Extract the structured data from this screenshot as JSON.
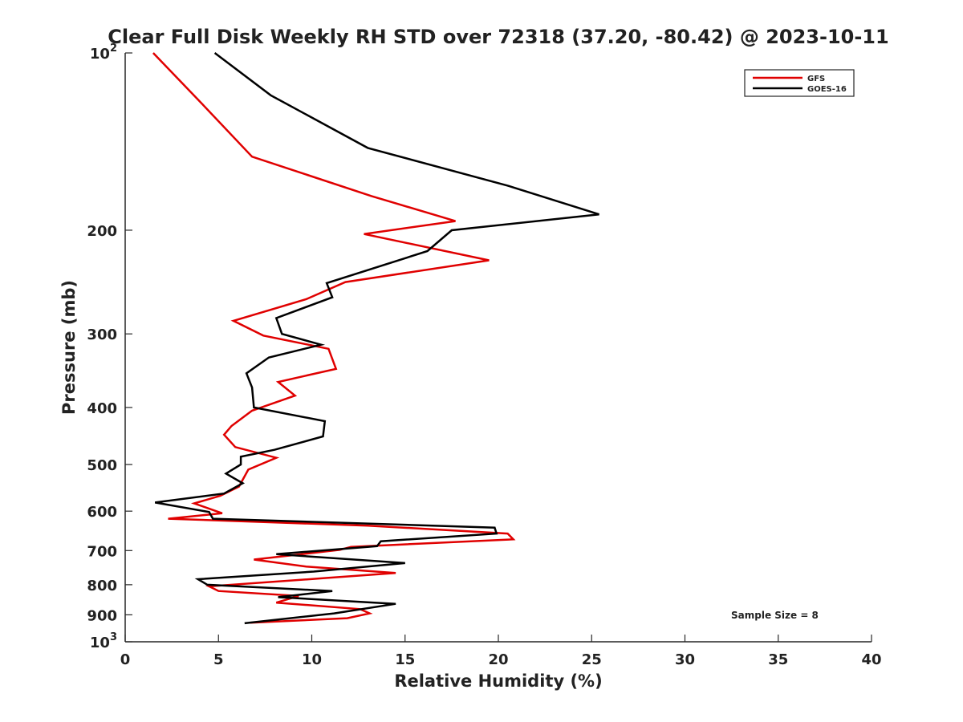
{
  "chart_data": {
    "type": "line",
    "title": "Clear Full Disk Weekly RH STD over 72318 (37.20, -80.42) @ 2023-10-11",
    "xlabel": "Relative Humidity (%)",
    "ylabel": "Pressure (mb)",
    "xlim": [
      0,
      40
    ],
    "ylim": [
      100,
      1000
    ],
    "y_scale": "log",
    "y_reversed": true,
    "grid": false,
    "legend_position": "top-right",
    "x_ticks": [
      "0",
      "5",
      "10",
      "15",
      "20",
      "25",
      "30",
      "35",
      "40"
    ],
    "y_ticks": [
      {
        "value": 100,
        "base": "10",
        "exp": "2"
      },
      {
        "value": 200,
        "base": "200",
        "exp": ""
      },
      {
        "value": 300,
        "base": "300",
        "exp": ""
      },
      {
        "value": 400,
        "base": "400",
        "exp": ""
      },
      {
        "value": 500,
        "base": "500",
        "exp": ""
      },
      {
        "value": 600,
        "base": "600",
        "exp": ""
      },
      {
        "value": 700,
        "base": "700",
        "exp": ""
      },
      {
        "value": 800,
        "base": "800",
        "exp": ""
      },
      {
        "value": 900,
        "base": "900",
        "exp": ""
      },
      {
        "value": 1000,
        "base": "10",
        "exp": "3"
      }
    ],
    "annotation": "Sample Size = 8",
    "series": [
      {
        "name": "GFS",
        "color": "#e00000",
        "points": [
          [
            1.5,
            100
          ],
          [
            3.9,
            120
          ],
          [
            6.8,
            150
          ],
          [
            13.2,
            175
          ],
          [
            17.7,
            193
          ],
          [
            12.8,
            203
          ],
          [
            19.5,
            225
          ],
          [
            11.8,
            245
          ],
          [
            9.7,
            262
          ],
          [
            5.8,
            285
          ],
          [
            7.4,
            302
          ],
          [
            10.9,
            318
          ],
          [
            11.3,
            344
          ],
          [
            8.2,
            362
          ],
          [
            9.1,
            382
          ],
          [
            6.8,
            405
          ],
          [
            5.7,
            430
          ],
          [
            5.3,
            445
          ],
          [
            5.9,
            467
          ],
          [
            8.1,
            487
          ],
          [
            6.6,
            510
          ],
          [
            6.1,
            545
          ],
          [
            5.1,
            565
          ],
          [
            3.7,
            582
          ],
          [
            5.2,
            605
          ],
          [
            2.3,
            618
          ],
          [
            13.0,
            635
          ],
          [
            20.5,
            655
          ],
          [
            20.8,
            670
          ],
          [
            12.1,
            690
          ],
          [
            11.5,
            698
          ],
          [
            6.9,
            725
          ],
          [
            9.7,
            745
          ],
          [
            14.5,
            764
          ],
          [
            10.6,
            780
          ],
          [
            4.5,
            805
          ],
          [
            5.0,
            820
          ],
          [
            9.3,
            836
          ],
          [
            8.1,
            858
          ],
          [
            12.6,
            880
          ],
          [
            13.1,
            895
          ],
          [
            11.9,
            912
          ],
          [
            6.7,
            928
          ]
        ]
      },
      {
        "name": "GOES-16",
        "color": "#000000",
        "points": [
          [
            4.8,
            100
          ],
          [
            7.8,
            118
          ],
          [
            13.0,
            145
          ],
          [
            20.5,
            168
          ],
          [
            25.4,
            188
          ],
          [
            17.5,
            200
          ],
          [
            16.2,
            217
          ],
          [
            10.8,
            246
          ],
          [
            11.1,
            260
          ],
          [
            8.1,
            282
          ],
          [
            8.4,
            300
          ],
          [
            10.5,
            313
          ],
          [
            7.7,
            329
          ],
          [
            6.5,
            350
          ],
          [
            6.8,
            370
          ],
          [
            6.9,
            400
          ],
          [
            10.7,
            422
          ],
          [
            10.6,
            448
          ],
          [
            8.0,
            472
          ],
          [
            6.2,
            485
          ],
          [
            6.2,
            500
          ],
          [
            5.4,
            518
          ],
          [
            6.3,
            538
          ],
          [
            5.3,
            560
          ],
          [
            1.6,
            580
          ],
          [
            4.5,
            602
          ],
          [
            4.7,
            618
          ],
          [
            19.8,
            640
          ],
          [
            19.9,
            655
          ],
          [
            13.7,
            675
          ],
          [
            13.5,
            688
          ],
          [
            8.1,
            710
          ],
          [
            15.0,
            735
          ],
          [
            10.1,
            760
          ],
          [
            3.9,
            783
          ],
          [
            4.4,
            800
          ],
          [
            11.1,
            820
          ],
          [
            8.2,
            840
          ],
          [
            14.5,
            862
          ],
          [
            11.2,
            895
          ],
          [
            6.4,
            930
          ]
        ]
      }
    ]
  }
}
